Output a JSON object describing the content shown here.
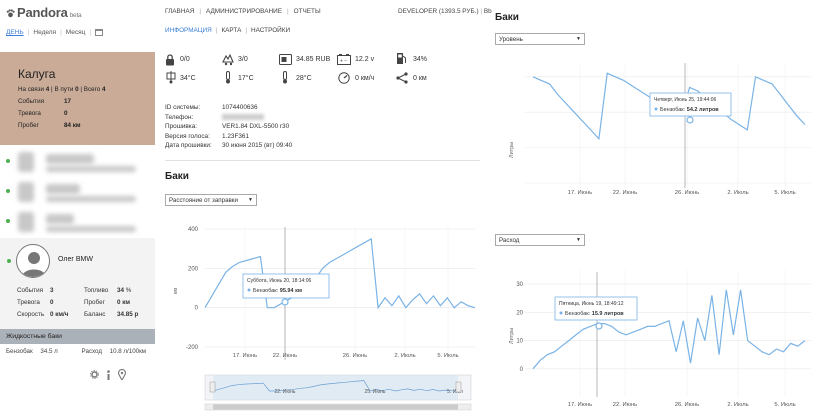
{
  "sidebar": {
    "logo": "Pandora",
    "logo_badge": "beta",
    "period_tabs": [
      "ДЕНЬ",
      "Неделя",
      "Месяц"
    ],
    "city": {
      "name": "Калуга",
      "on_link_label": "На связи",
      "on_link": "4",
      "on_way_label": "В пути",
      "on_way": "0",
      "total_label": "Всего",
      "total": "4",
      "events_label": "События",
      "events": "17",
      "alarm_label": "Тревога",
      "alarm": "0",
      "mileage_label": "Пробег",
      "mileage": "84 км"
    },
    "user": {
      "name": "Олег BMW",
      "events_label": "События",
      "events": "3",
      "fuel_label": "Топливо",
      "fuel": "34",
      "fuel_unit": "%",
      "alarm_label": "Тревога",
      "alarm": "0",
      "mileage_label": "Пробег",
      "mileage": "0 км",
      "speed_label": "Скорость",
      "speed": "0 км/ч",
      "balance_label": "Баланс",
      "balance": "34.85 р"
    },
    "fluid_header": "Жидкостные баки",
    "fluid_tank_label": "Бензобак",
    "fluid_tank_value": "34.5 л",
    "fluid_consumption_label": "Расход",
    "fluid_consumption_value": "10.8 л/100км"
  },
  "topnav": {
    "items": [
      "ГЛАВНАЯ",
      "АДМИНИСТРИРОВАНИЕ",
      "ОТЧЕТЫ"
    ],
    "account": "DEVELOPER (1393.5 РУБ.)",
    "account_suffix": "Вb"
  },
  "subtabs": [
    "ИНФОРМАЦИЯ",
    "КАРТА",
    "НАСТРОЙКИ"
  ],
  "stats": {
    "row1": [
      "0/0",
      "3/0",
      "34.85 RUB",
      "12.2 v",
      "34%"
    ],
    "row2": [
      "34°C",
      "17°C",
      "28°C",
      "0 км/ч",
      "0 км"
    ]
  },
  "info": [
    {
      "k": "ID системы:",
      "v": "1074400636"
    },
    {
      "k": "Телефон:",
      "v": ""
    },
    {
      "k": "Прошивка:",
      "v": "VER1.84 DXL-5500 r30"
    },
    {
      "k": "Версия голоса:",
      "v": "1.23F361"
    },
    {
      "k": "Дата прошивки:",
      "v": "30 июня 2015 (вт) 09:40"
    }
  ],
  "tanks_mid": {
    "title": "Баки",
    "select": "Расстояние от заправки",
    "tooltip_date": "Суббота, Июнь 20, 18:14:06",
    "tooltip_series": "Бензобак:",
    "tooltip_value": "95.94 км"
  },
  "tanks_right": {
    "title": "Баки",
    "select_level": "Уровень",
    "select_consumption": "Расход",
    "tooltip1_date": "Четверг, Июнь 25, 19:44:06",
    "tooltip1_series": "Бензобак:",
    "tooltip1_value": "54.2 литров",
    "tooltip2_date": "Пятница, Июнь 19, 18:49:12",
    "tooltip2_series": "Бензобак:",
    "tooltip2_value": "15.9 литров",
    "ylabel": "Литры"
  },
  "chart_data": [
    {
      "type": "line",
      "title": "",
      "xlabel": "",
      "ylabel": "км",
      "ylim": [
        -200,
        400
      ],
      "yticks": [
        "400",
        "200",
        "0",
        "-200"
      ],
      "xticks": [
        "17. Июнь",
        "22. Июнь",
        "26. Июнь",
        "2. Июль",
        "5. Июль"
      ],
      "navigator_ticks": [
        "",
        "22. Июнь",
        "",
        "25. Июнь",
        "5. Июл"
      ],
      "series": [
        {
          "values": [
            0,
            60,
            120,
            180,
            210,
            230,
            240,
            250,
            260,
            0,
            0,
            20,
            40,
            60,
            90,
            110,
            150,
            200,
            230,
            250,
            270,
            290,
            310,
            330,
            350,
            0,
            50,
            10,
            60,
            0,
            40,
            70,
            20,
            60,
            10,
            50,
            0,
            30,
            10,
            0
          ]
        }
      ],
      "color": "#7ab3e6",
      "grid": true
    },
    {
      "type": "line",
      "title": "",
      "xlabel": "",
      "ylabel": "Литры",
      "xticks": [
        "17. Июнь",
        "22. Июнь",
        "26. Июнь",
        "2. Июль",
        "5. Июль"
      ],
      "series": [
        {
          "values": [
            60,
            58,
            56,
            50,
            45,
            40,
            35,
            30,
            25,
            62,
            60,
            58,
            55,
            52,
            49,
            46,
            43,
            40,
            38,
            54,
            52,
            48,
            44,
            40,
            36,
            33,
            30,
            60,
            58,
            56,
            50,
            44,
            38,
            33
          ]
        }
      ],
      "color": "#7ab3e6",
      "grid": true
    },
    {
      "type": "line",
      "title": "",
      "xlabel": "",
      "ylabel": "Литры",
      "ylim": [
        -10,
        35
      ],
      "yticks": [
        "30",
        "20",
        "10",
        "0"
      ],
      "xticks": [
        "17. Июнь",
        "22. Июнь",
        "26. Июнь",
        "2. Июль",
        "5. Июль"
      ],
      "series": [
        {
          "values": [
            0,
            3,
            5,
            6,
            8,
            10,
            12,
            14,
            15,
            16,
            16,
            15,
            13,
            12,
            13,
            14,
            15,
            15,
            16,
            17,
            6,
            17,
            2,
            18,
            10,
            26,
            5,
            28,
            12,
            28,
            10,
            8,
            6,
            5,
            7,
            6,
            9,
            8,
            10
          ]
        }
      ],
      "color": "#7ab3e6",
      "grid": true
    }
  ]
}
